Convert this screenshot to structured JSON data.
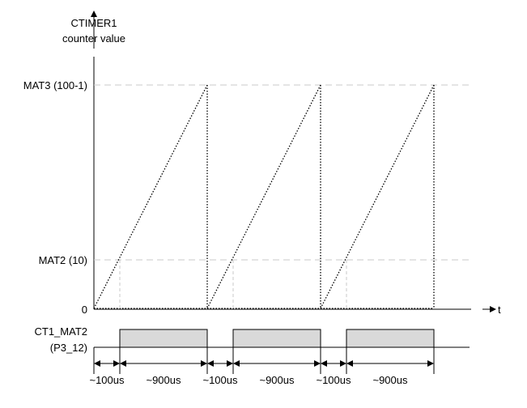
{
  "y_axis": {
    "label_line1": "CTIMER1",
    "label_line2": "counter value",
    "levels": {
      "mat3": "MAT3 (100-1)",
      "mat2": "MAT2 (10)",
      "zero": "0"
    }
  },
  "x_axis": {
    "label": "t"
  },
  "signal": {
    "label_line1": "CT1_MAT2",
    "label_line2": "(P3_12)",
    "high_fill": "#d9d9d9"
  },
  "periods": [
    {
      "low_label": "~100us",
      "high_label": "~900us"
    },
    {
      "low_label": "~100us",
      "high_label": "~900us"
    },
    {
      "low_label": "~100us",
      "high_label": "~900us"
    }
  ],
  "colors": {
    "axis": "#000000",
    "grid_dash": "#c8c8c8"
  }
}
